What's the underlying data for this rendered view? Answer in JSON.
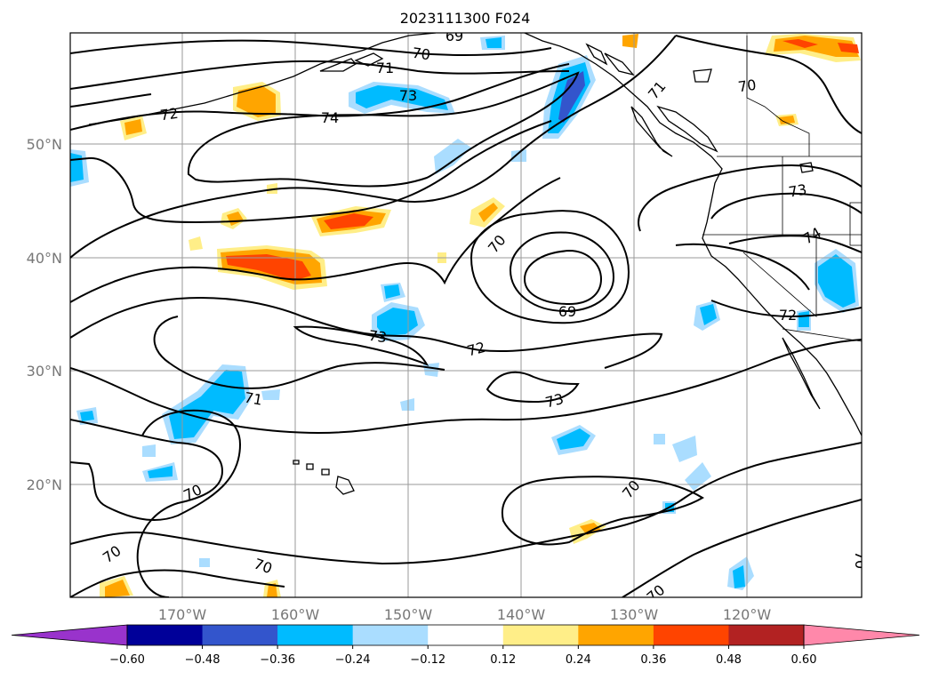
{
  "title": "2023111300 F024",
  "lon_labels": [
    "170°W",
    "160°W",
    "150°W",
    "140°W",
    "130°W",
    "120°W"
  ],
  "lat_labels": [
    "50°N",
    "40°N",
    "30°N",
    "20°N"
  ],
  "colorbar": {
    "tick_labels": [
      "−0.60",
      "−0.48",
      "−0.36",
      "−0.24",
      "−0.12",
      "0.12",
      "0.24",
      "0.36",
      "0.48",
      "0.60"
    ],
    "colors": [
      "#9933CC",
      "#000099",
      "#3355CC",
      "#00BBFF",
      "#AADDFF",
      "#FFFFFF",
      "#FFEE88",
      "#FFA500",
      "#FF4400",
      "#B22222",
      "#FF88AA"
    ]
  },
  "contour_labels": [
    "69",
    "70",
    "71",
    "73",
    "72",
    "74",
    "70",
    "71",
    "70",
    "73",
    "74",
    "70",
    "69",
    "73",
    "72",
    "72",
    "71",
    "73",
    "70",
    "70",
    "70",
    "70",
    "70",
    "70"
  ],
  "chart_data": {
    "type": "heatmap",
    "title": "2023111300 F024",
    "x_ticks": [
      "170°W",
      "160°W",
      "150°W",
      "140°W",
      "130°W",
      "120°W"
    ],
    "y_ticks": [
      "50°N",
      "40°N",
      "30°N",
      "20°N"
    ],
    "colorbar_ticks": [
      -0.6,
      -0.48,
      -0.36,
      -0.24,
      -0.12,
      0.12,
      0.24,
      0.36,
      0.48,
      0.6
    ],
    "colorbar_extend": "both",
    "contour_levels": [
      69,
      70,
      71,
      72,
      73,
      74
    ],
    "grid": true
  }
}
